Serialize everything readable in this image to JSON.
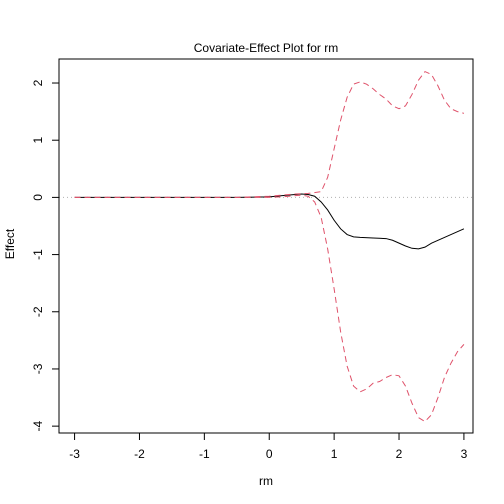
{
  "chart_data": {
    "type": "line",
    "title": "Covariate-Effect Plot for rm",
    "xlabel": "rm",
    "ylabel": "Effect",
    "xlim": [
      -3.24,
      3.14
    ],
    "ylim": [
      -4.12,
      2.42
    ],
    "x_ticks": [
      -3,
      -2,
      -1,
      0,
      1,
      2,
      3
    ],
    "x_tick_labels": [
      "-3",
      "-2",
      "-1",
      "0",
      "1",
      "2",
      "3"
    ],
    "y_ticks": [
      -4,
      -3,
      -2,
      -1,
      0,
      1,
      2
    ],
    "y_tick_labels": [
      "-4",
      "-3",
      "-2",
      "-1",
      "0",
      "1",
      "2"
    ],
    "reference_line": {
      "y": 0,
      "style": "dotted",
      "color": "#b0b0b0"
    },
    "series": [
      {
        "role": "estimate",
        "color": "#000000",
        "dash": "solid",
        "x": [
          -3.0,
          -2.5,
          -2.0,
          -1.5,
          -1.0,
          -0.5,
          0.0,
          0.2,
          0.4,
          0.5,
          0.6,
          0.7,
          0.8,
          0.9,
          1.0,
          1.1,
          1.2,
          1.3,
          1.4,
          1.6,
          1.8,
          1.9,
          2.0,
          2.1,
          2.2,
          2.3,
          2.4,
          2.5,
          2.7,
          2.9,
          3.0
        ],
        "y": [
          0.0,
          0.0,
          0.0,
          0.0,
          0.0,
          0.0,
          0.01,
          0.03,
          0.05,
          0.06,
          0.05,
          0.02,
          -0.08,
          -0.22,
          -0.4,
          -0.55,
          -0.65,
          -0.69,
          -0.7,
          -0.71,
          -0.72,
          -0.75,
          -0.8,
          -0.85,
          -0.89,
          -0.9,
          -0.87,
          -0.8,
          -0.7,
          -0.6,
          -0.55
        ]
      },
      {
        "role": "upper-band",
        "color": "#df536b",
        "dash": "dashed",
        "x": [
          -3.0,
          -2.5,
          -2.0,
          -1.5,
          -1.0,
          -0.5,
          0.0,
          0.2,
          0.4,
          0.6,
          0.8,
          0.9,
          1.0,
          1.1,
          1.2,
          1.3,
          1.4,
          1.5,
          1.6,
          1.7,
          1.8,
          1.9,
          2.0,
          2.1,
          2.2,
          2.3,
          2.4,
          2.5,
          2.6,
          2.7,
          2.8,
          2.9,
          3.0
        ],
        "y": [
          0.0,
          0.0,
          0.0,
          0.0,
          0.0,
          0.0,
          0.02,
          0.04,
          0.06,
          0.07,
          0.1,
          0.35,
          0.85,
          1.35,
          1.75,
          1.98,
          2.02,
          1.98,
          1.9,
          1.8,
          1.72,
          1.6,
          1.55,
          1.6,
          1.8,
          2.05,
          2.2,
          2.15,
          1.95,
          1.7,
          1.55,
          1.5,
          1.47
        ]
      },
      {
        "role": "lower-band",
        "color": "#df536b",
        "dash": "dashed",
        "x": [
          -3.0,
          -2.5,
          -2.0,
          -1.5,
          -1.0,
          -0.5,
          0.0,
          0.2,
          0.4,
          0.5,
          0.6,
          0.7,
          0.8,
          0.9,
          1.0,
          1.1,
          1.2,
          1.3,
          1.4,
          1.5,
          1.6,
          1.7,
          1.8,
          1.9,
          2.0,
          2.1,
          2.2,
          2.3,
          2.4,
          2.5,
          2.6,
          2.7,
          2.8,
          2.9,
          3.0
        ],
        "y": [
          0.0,
          0.0,
          0.0,
          0.0,
          0.0,
          0.0,
          0.0,
          0.01,
          0.03,
          0.04,
          0.02,
          -0.08,
          -0.35,
          -0.9,
          -1.6,
          -2.35,
          -2.95,
          -3.3,
          -3.4,
          -3.35,
          -3.25,
          -3.22,
          -3.15,
          -3.1,
          -3.12,
          -3.3,
          -3.6,
          -3.85,
          -3.92,
          -3.8,
          -3.5,
          -3.15,
          -2.9,
          -2.7,
          -2.57
        ]
      }
    ],
    "grid": false,
    "legend": "none"
  }
}
